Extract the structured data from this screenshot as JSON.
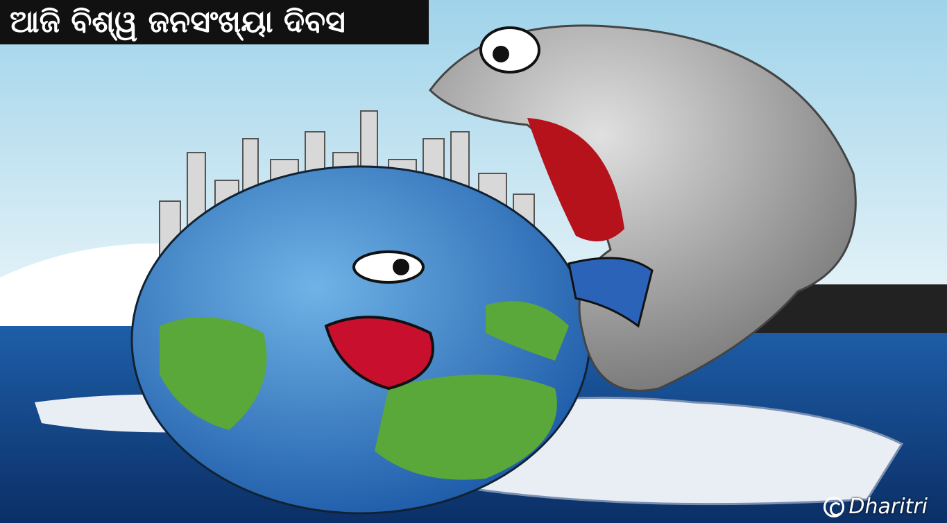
{
  "header": {
    "title": "ଆଜି ବିଶ୍ୱ ଜନସଂଖ୍ୟା ଦିବସ"
  },
  "footer": {
    "credit": "Dharitri"
  }
}
